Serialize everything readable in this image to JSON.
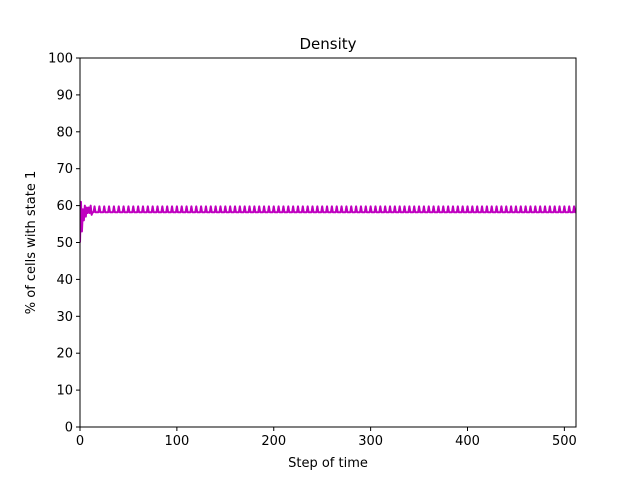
{
  "chart_data": {
    "type": "line",
    "title": "Density",
    "xlabel": "Step of time",
    "ylabel": "% of cells with state 1",
    "xlim": [
      0,
      512
    ],
    "ylim": [
      0,
      100
    ],
    "xticks": [
      0,
      100,
      200,
      300,
      400,
      500
    ],
    "yticks": [
      0,
      10,
      20,
      30,
      40,
      50,
      60,
      70,
      80,
      90,
      100
    ],
    "grid": false,
    "series": [
      {
        "color": "#bf00bf",
        "x_start": 0,
        "x_step": 1,
        "initial": [
          50,
          61,
          53,
          59,
          56,
          60,
          57,
          59.5,
          58,
          59.5,
          58,
          60,
          57.5
        ],
        "oscillation": {
          "low": 58.2,
          "high": 59.8,
          "period": 5,
          "until": 512
        }
      }
    ]
  }
}
